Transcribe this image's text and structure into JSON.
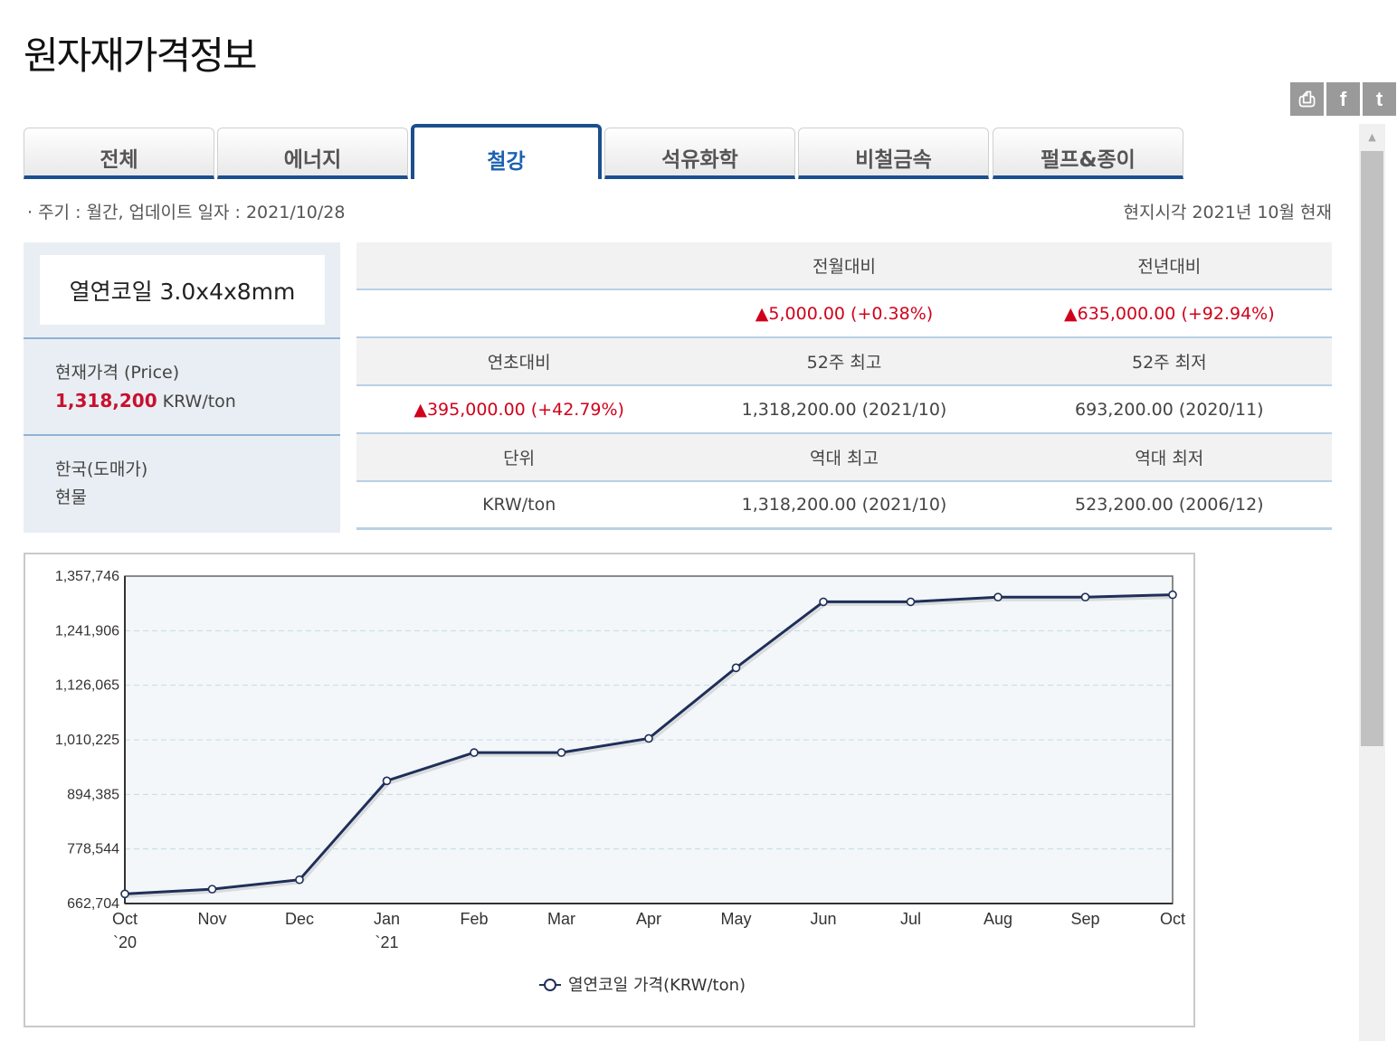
{
  "page": {
    "title": "원자재가격정보"
  },
  "share": [
    {
      "name": "print-icon",
      "glyph": "⎙"
    },
    {
      "name": "facebook-icon",
      "glyph": "f"
    },
    {
      "name": "twitter-icon",
      "glyph": "t"
    }
  ],
  "tabs": [
    {
      "label": "전체",
      "active": false
    },
    {
      "label": "에너지",
      "active": false
    },
    {
      "label": "철강",
      "active": true
    },
    {
      "label": "석유화학",
      "active": false
    },
    {
      "label": "비철금속",
      "active": false
    },
    {
      "label": "펄프&종이",
      "active": false
    }
  ],
  "info": {
    "period": "· 주기 : 월간, 업데이트 일자 : 2021/10/28",
    "local_time": "현지시각 2021년 10월 현재"
  },
  "product": {
    "name": "열연코일 3.0x4x8mm",
    "price_label": "현재가격 (Price)",
    "price_value": "1,318,200",
    "price_unit": "KRW/ton",
    "market_line1": "한국(도매가)",
    "market_line2": "현물"
  },
  "stats": {
    "row1_head": [
      "",
      "전월대비",
      "전년대비"
    ],
    "row1_vals": [
      "",
      "▲5,000.00 (+0.38%)",
      "▲635,000.00 (+92.94%)"
    ],
    "row2_head": [
      "연초대비",
      "52주 최고",
      "52주 최저"
    ],
    "row2_vals": [
      "▲395,000.00 (+42.79%)",
      "1,318,200.00 (2021/10)",
      "693,200.00 (2020/11)"
    ],
    "row3_head": [
      "단위",
      "역대 최고",
      "역대 최저"
    ],
    "row3_vals": [
      "KRW/ton",
      "1,318,200.00 (2021/10)",
      "523,200.00 (2006/12)"
    ]
  },
  "chart_data": {
    "type": "line",
    "x": [
      "Oct",
      "Nov",
      "Dec",
      "Jan",
      "Feb",
      "Mar",
      "Apr",
      "May",
      "Jun",
      "Jul",
      "Aug",
      "Sep",
      "Oct"
    ],
    "x_sub": [
      "`20",
      "",
      "",
      "`21",
      "",
      "",
      "",
      "",
      "",
      "",
      "",
      "",
      ""
    ],
    "series": [
      {
        "name": "열연코일 가격(KRW/ton)",
        "values": [
          683200,
          693200,
          713200,
          923200,
          983200,
          983200,
          1013200,
          1163200,
          1303200,
          1303200,
          1313200,
          1313200,
          1318200
        ]
      }
    ],
    "ylim": [
      662704,
      1357746
    ],
    "yticks": [
      "1,357,746",
      "1,241,906",
      "1,126,065",
      "1,010,225",
      "894,385",
      "778,544",
      "662,704"
    ],
    "grid": true,
    "legend": "bottom-center",
    "colors": {
      "line": "#1f2f5a",
      "plot_bg": "#f3f7f9",
      "grid": "#c4dbe6"
    }
  }
}
